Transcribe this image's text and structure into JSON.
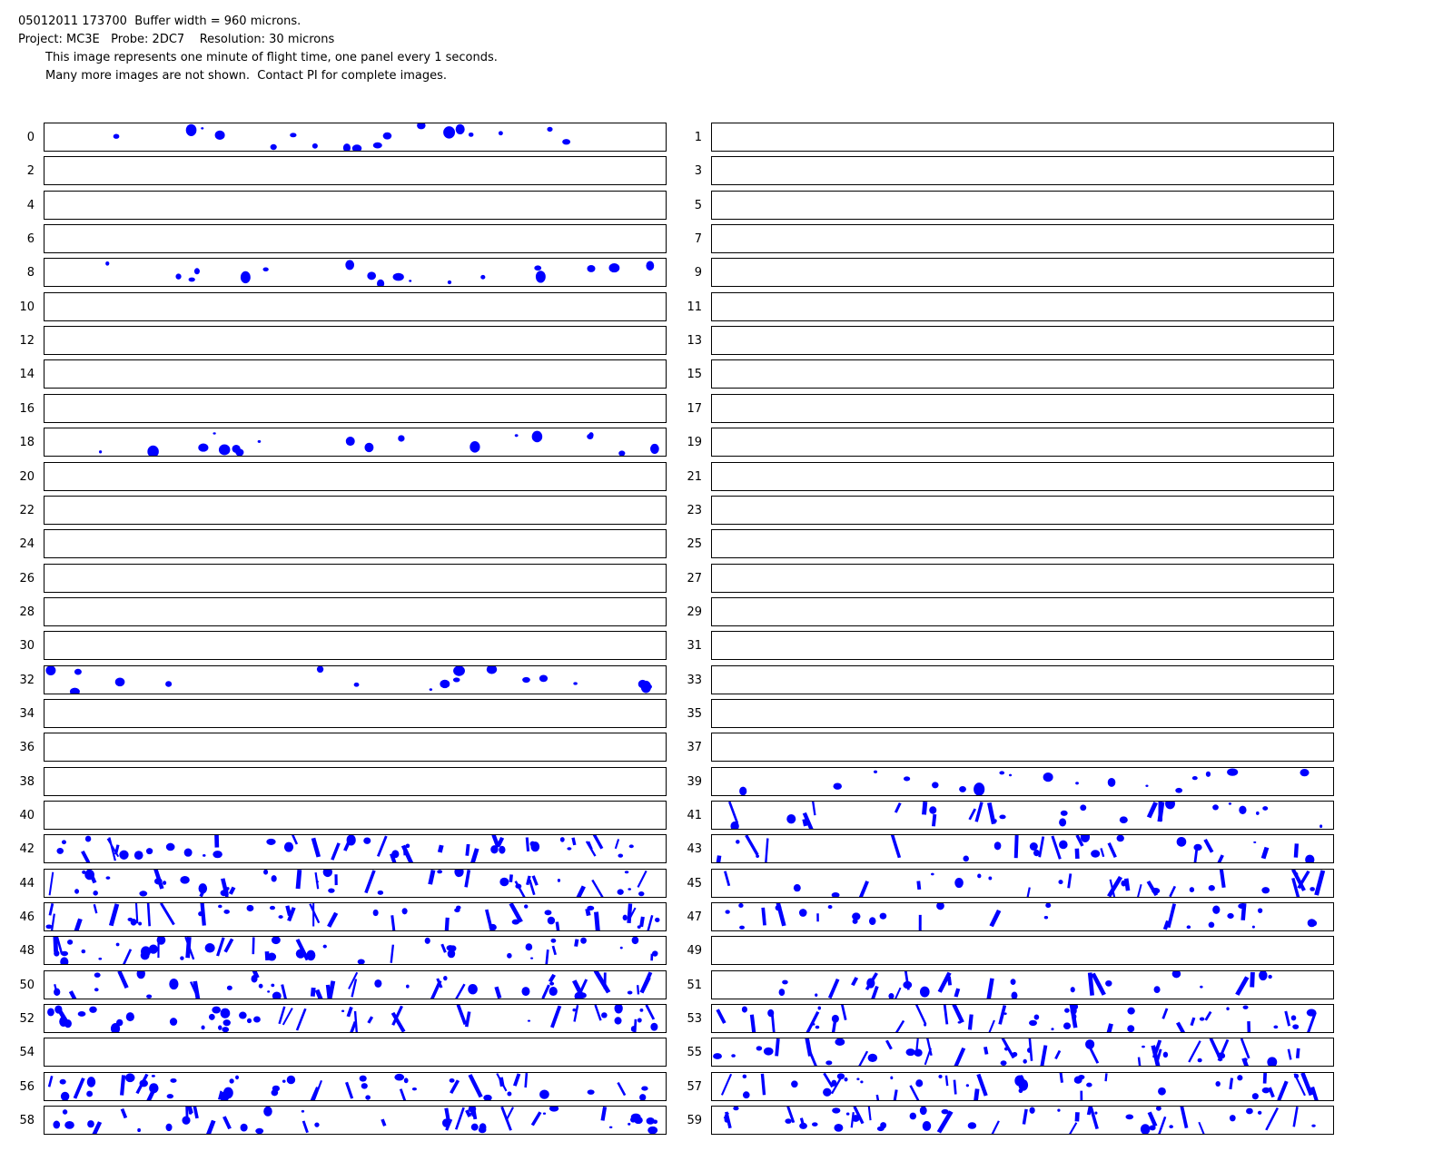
{
  "header": {
    "line1": "05012011 173700  Buffer width = 960 microns.",
    "line2": "Project: MC3E   Probe: 2DC7    Resolution: 30 microns",
    "line3": "This image represents one minute of flight time, one panel every 1 seconds.",
    "line4": "Many more images are not shown.  Contact PI for complete images."
  },
  "particle_color": "#0000ff",
  "panels": [
    {
      "label": "0",
      "level": "sparse"
    },
    {
      "label": "1",
      "level": "empty"
    },
    {
      "label": "2",
      "level": "empty"
    },
    {
      "label": "3",
      "level": "empty"
    },
    {
      "label": "4",
      "level": "empty"
    },
    {
      "label": "5",
      "level": "empty"
    },
    {
      "label": "6",
      "level": "empty"
    },
    {
      "label": "7",
      "level": "empty"
    },
    {
      "label": "8",
      "level": "sparse"
    },
    {
      "label": "9",
      "level": "empty"
    },
    {
      "label": "10",
      "level": "empty"
    },
    {
      "label": "11",
      "level": "empty"
    },
    {
      "label": "12",
      "level": "empty"
    },
    {
      "label": "13",
      "level": "empty"
    },
    {
      "label": "14",
      "level": "empty"
    },
    {
      "label": "15",
      "level": "empty"
    },
    {
      "label": "16",
      "level": "empty"
    },
    {
      "label": "17",
      "level": "empty"
    },
    {
      "label": "18",
      "level": "sparse"
    },
    {
      "label": "19",
      "level": "empty"
    },
    {
      "label": "20",
      "level": "empty"
    },
    {
      "label": "21",
      "level": "empty"
    },
    {
      "label": "22",
      "level": "empty"
    },
    {
      "label": "23",
      "level": "empty"
    },
    {
      "label": "24",
      "level": "empty"
    },
    {
      "label": "25",
      "level": "empty"
    },
    {
      "label": "26",
      "level": "empty"
    },
    {
      "label": "27",
      "level": "empty"
    },
    {
      "label": "28",
      "level": "empty"
    },
    {
      "label": "29",
      "level": "empty"
    },
    {
      "label": "30",
      "level": "empty"
    },
    {
      "label": "31",
      "level": "empty"
    },
    {
      "label": "32",
      "level": "sparse"
    },
    {
      "label": "33",
      "level": "empty"
    },
    {
      "label": "34",
      "level": "empty"
    },
    {
      "label": "35",
      "level": "empty"
    },
    {
      "label": "36",
      "level": "empty"
    },
    {
      "label": "37",
      "level": "empty"
    },
    {
      "label": "38",
      "level": "empty"
    },
    {
      "label": "39",
      "level": "sparse"
    },
    {
      "label": "40",
      "level": "empty"
    },
    {
      "label": "41",
      "level": "medium"
    },
    {
      "label": "42",
      "level": "dense"
    },
    {
      "label": "43",
      "level": "medium"
    },
    {
      "label": "44",
      "level": "dense"
    },
    {
      "label": "45",
      "level": "medium"
    },
    {
      "label": "46",
      "level": "dense"
    },
    {
      "label": "47",
      "level": "medium"
    },
    {
      "label": "48",
      "level": "dense"
    },
    {
      "label": "49",
      "level": "empty"
    },
    {
      "label": "50",
      "level": "dense"
    },
    {
      "label": "51",
      "level": "medium"
    },
    {
      "label": "52",
      "level": "dense"
    },
    {
      "label": "53",
      "level": "dense"
    },
    {
      "label": "54",
      "level": "empty"
    },
    {
      "label": "55",
      "level": "dense"
    },
    {
      "label": "56",
      "level": "dense"
    },
    {
      "label": "57",
      "level": "dense"
    },
    {
      "label": "58",
      "level": "dense"
    },
    {
      "label": "59",
      "level": "dense"
    }
  ]
}
